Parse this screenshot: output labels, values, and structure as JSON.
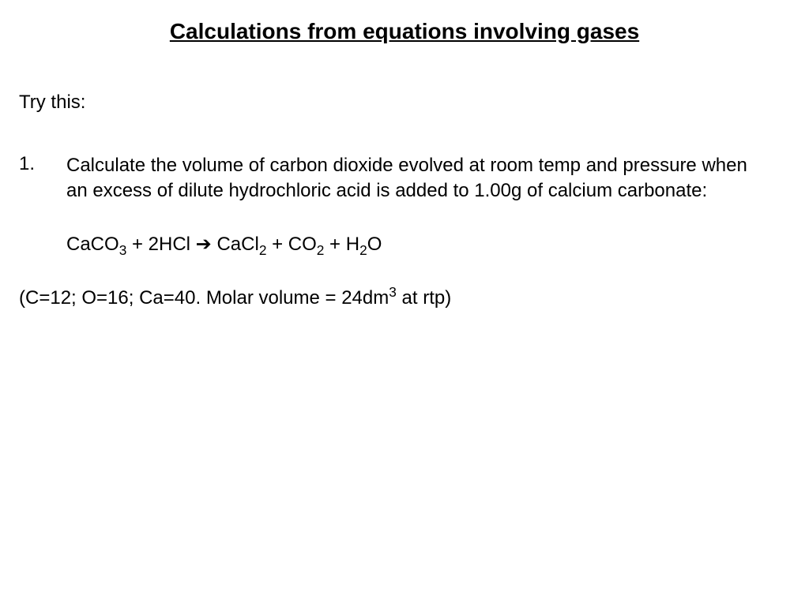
{
  "title": "Calculations from equations involving gases",
  "intro": "Try this:",
  "problem": {
    "number": "1.",
    "text": "Calculate the volume of carbon dioxide evolved at room temp and pressure when an excess of dilute hydrochloric acid is added to 1.00g of calcium carbonate:"
  },
  "equation": {
    "reactant1": {
      "base": "CaCO",
      "sub": "3"
    },
    "plus1": " + ",
    "reactant2": {
      "coef": "2",
      "base": "HCl"
    },
    "arrow": "  ➔   ",
    "product1": {
      "base": "CaCl",
      "sub": "2"
    },
    "plus2": " + ",
    "product2": {
      "base": "CO",
      "sub": "2"
    },
    "plus3": " + ",
    "product3": {
      "base": "H",
      "sub": "2",
      "tail": "O"
    }
  },
  "givens": {
    "prefix": "(C=12; O=16; Ca=40. Molar volume = 24dm",
    "sup": "3",
    "suffix": " at rtp)"
  },
  "style": {
    "background_color": "#ffffff",
    "text_color": "#000000",
    "title_fontsize": 28,
    "body_fontsize": 24,
    "font_family": "Arial, Helvetica, sans-serif"
  }
}
